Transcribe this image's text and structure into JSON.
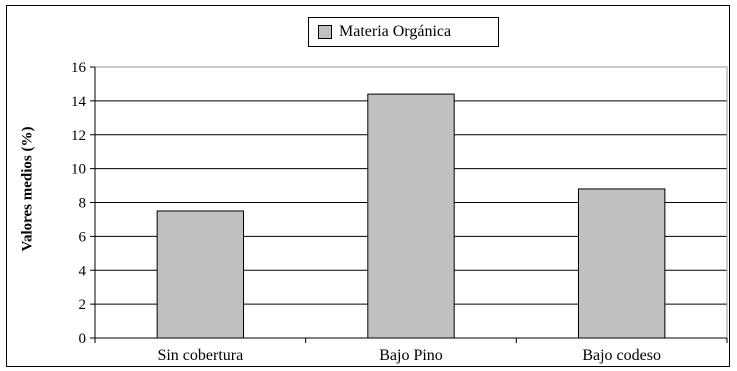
{
  "chart_data": {
    "type": "bar",
    "title": "",
    "xlabel": "",
    "ylabel": "Valores medios (%)",
    "categories": [
      "Sin cobertura",
      "Bajo Pino",
      "Bajo codeso"
    ],
    "series": [
      {
        "name": "Materia Orgánica",
        "values": [
          7.5,
          14.4,
          8.8
        ]
      }
    ],
    "ylim": [
      0,
      16
    ],
    "yticks": [
      "0",
      "2",
      "4",
      "6",
      "8",
      "10",
      "12",
      "14",
      "16"
    ],
    "grid": true,
    "legend_position": "top-center",
    "colors": {
      "bar": "#c0c0c0",
      "bar_border": "#000000",
      "grid": "#000000"
    }
  }
}
